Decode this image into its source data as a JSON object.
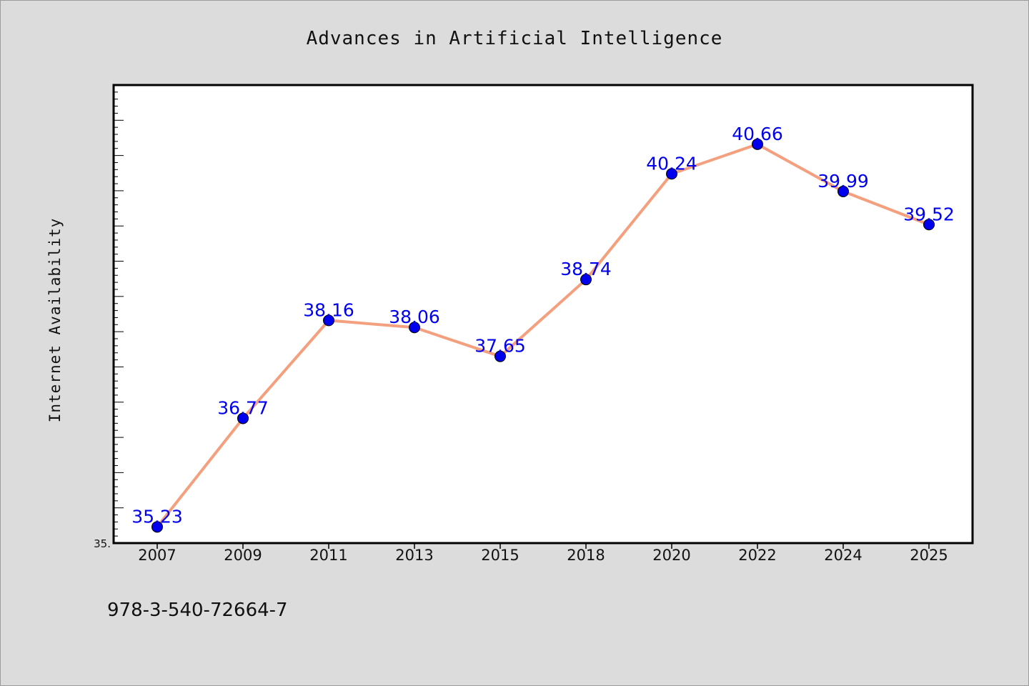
{
  "chart_data": {
    "type": "line",
    "title": "Advances in Artificial Intelligence",
    "xlabel": "",
    "ylabel": "Internet Availability",
    "categories": [
      "2007",
      "2009",
      "2011",
      "2013",
      "2015",
      "2018",
      "2020",
      "2022",
      "2024",
      "2025"
    ],
    "series": [
      {
        "values": [
          35.23,
          36.77,
          38.16,
          38.06,
          37.65,
          38.74,
          40.24,
          40.66,
          39.99,
          39.52
        ],
        "data_labels": [
          "35.23",
          "36.77",
          "38.16",
          "38.06",
          "37.65",
          "38.74",
          "40.24",
          "40.66",
          "39.99",
          "39.52"
        ]
      }
    ],
    "y_tick_labels": [
      "35."
    ],
    "ylim": [
      35.0,
      41.5
    ],
    "grid": false,
    "legend": "none",
    "line_color": "#f4a07f",
    "marker_color": "#0000ee",
    "label_color": "#0000ee",
    "plot_background": "#ffffff",
    "figure_background": "#dcdcdc"
  },
  "footer": {
    "isbn": "978-3-540-72664-7"
  }
}
